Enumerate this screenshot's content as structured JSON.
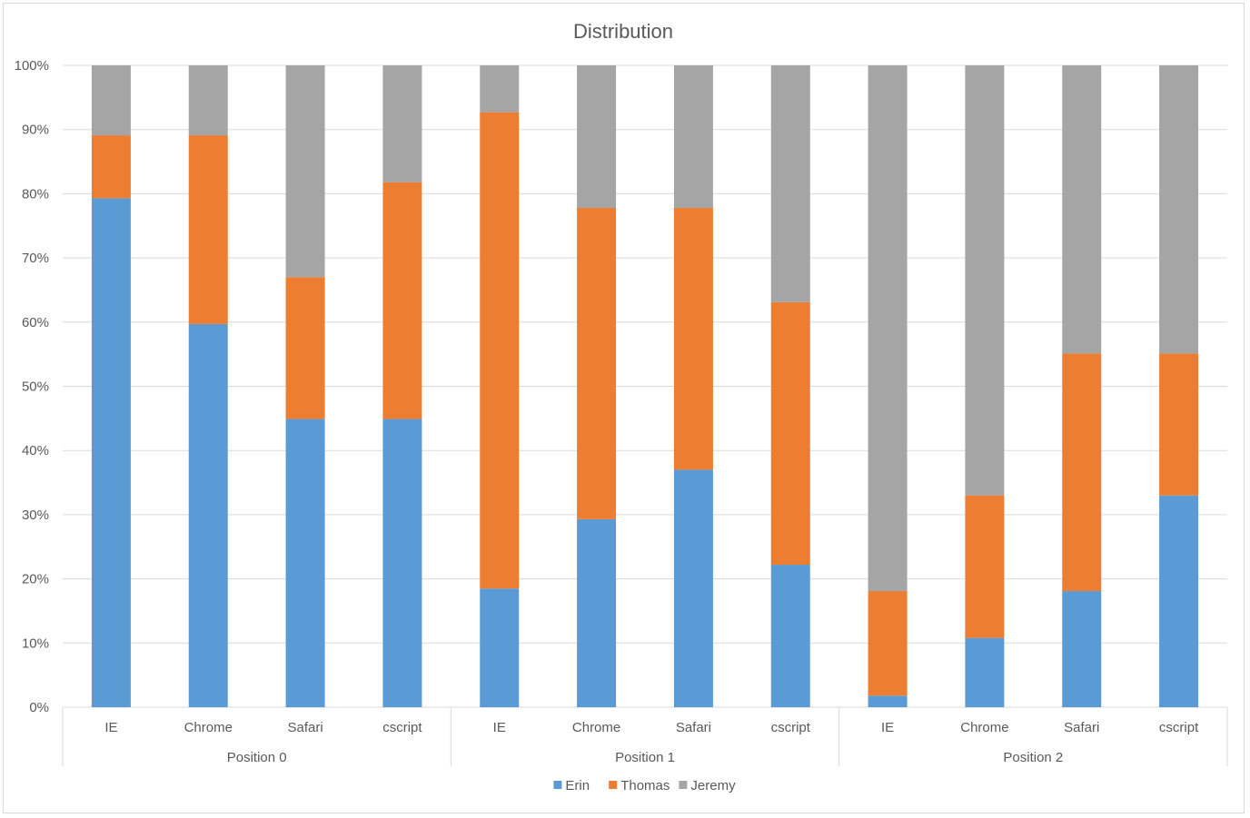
{
  "chart_data": {
    "type": "bar",
    "stacked": "percent",
    "title": "Distribution",
    "xlabel": "",
    "ylabel": "",
    "ylim": [
      0,
      100
    ],
    "y_ticks": [
      "0%",
      "10%",
      "20%",
      "30%",
      "40%",
      "50%",
      "60%",
      "70%",
      "80%",
      "90%",
      "100%"
    ],
    "groups": [
      {
        "label": "Position 0",
        "categories": [
          "IE",
          "Chrome",
          "Safari",
          "cscript"
        ]
      },
      {
        "label": "Position 1",
        "categories": [
          "IE",
          "Chrome",
          "Safari",
          "cscript"
        ]
      },
      {
        "label": "Position 2",
        "categories": [
          "IE",
          "Chrome",
          "Safari",
          "cscript"
        ]
      }
    ],
    "series": [
      {
        "name": "Erin",
        "color": "#5b9bd5",
        "values": [
          79.3,
          59.7,
          44.9,
          44.9,
          18.5,
          29.3,
          37.0,
          22.2,
          1.8,
          10.8,
          18.1,
          33.0
        ]
      },
      {
        "name": "Thomas",
        "color": "#ed7d31",
        "values": [
          9.8,
          29.4,
          22.1,
          36.9,
          74.2,
          48.5,
          40.8,
          40.9,
          16.3,
          22.2,
          37.0,
          22.1
        ]
      },
      {
        "name": "Jeremy",
        "color": "#a5a5a5",
        "values": [
          10.9,
          10.9,
          33.0,
          18.2,
          7.3,
          22.2,
          22.2,
          36.9,
          81.9,
          67.0,
          44.9,
          44.9
        ]
      }
    ],
    "legend_position": "bottom",
    "grid": true
  }
}
